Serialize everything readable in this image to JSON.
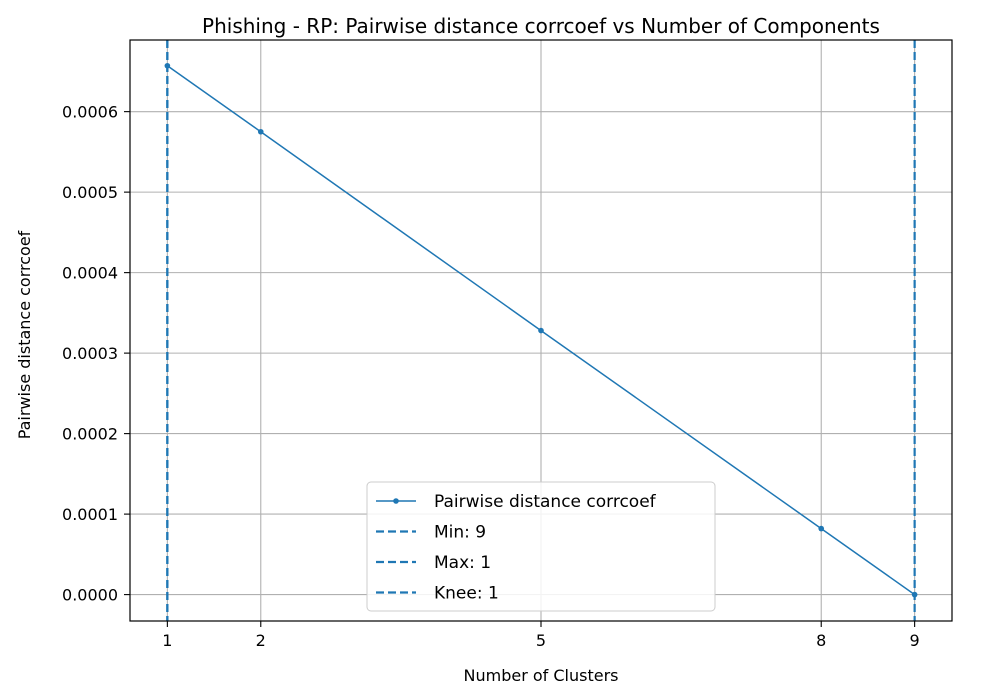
{
  "chart_data": {
    "type": "line",
    "title": "Phishing - RP: Pairwise distance corrcoef vs Number of Components",
    "xlabel": "Number of Clusters",
    "ylabel": "Pairwise distance corrcoef",
    "x": [
      1,
      2,
      5,
      8,
      9
    ],
    "series": [
      {
        "name": "Pairwise distance corrcoef",
        "values": [
          0.000657,
          0.000575,
          0.000328,
          8.2e-05,
          0.0
        ],
        "color": "#1f77b4",
        "marker": "dot"
      }
    ],
    "xticks": [
      1,
      2,
      5,
      8,
      9
    ],
    "xtick_labels": [
      "1",
      "2",
      "5",
      "8",
      "9"
    ],
    "yticks": [
      0.0,
      0.0001,
      0.0002,
      0.0003,
      0.0004,
      0.0005,
      0.0006
    ],
    "ytick_labels": [
      "0.0000",
      "0.0001",
      "0.0002",
      "0.0003",
      "0.0004",
      "0.0005",
      "0.0006"
    ],
    "xlim": [
      0.6,
      9.4
    ],
    "ylim": [
      -3.28e-05,
      0.000689
    ],
    "vlines": [
      {
        "label": "Min: 9",
        "x": 9,
        "color": "#1f77b4",
        "style": "dashed"
      },
      {
        "label": "Max: 1",
        "x": 1,
        "color": "#1f77b4",
        "style": "dashed"
      },
      {
        "label": "Knee: 1",
        "x": 1,
        "color": "#1f77b4",
        "style": "dashed"
      }
    ],
    "grid": true,
    "legend_position": "lower center"
  }
}
